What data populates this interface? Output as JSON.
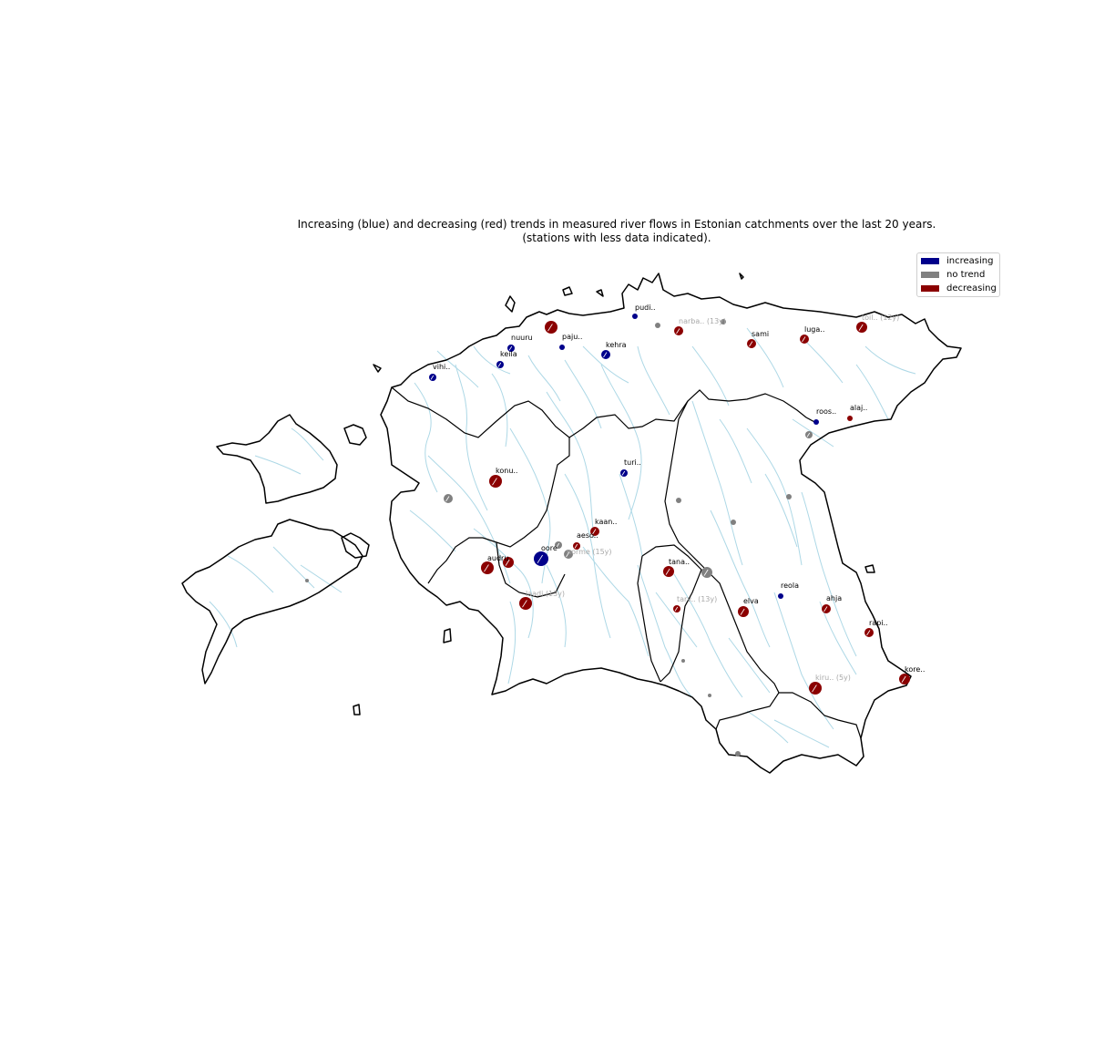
{
  "title": {
    "line1": "Increasing (blue) and decreasing (red) trends in measured river flows in Estonian catchments over the last 20 years.",
    "line2": "(stations with less data indicated)."
  },
  "legend": [
    {
      "label": "increasing",
      "color": "#00008b"
    },
    {
      "label": "no trend",
      "color": "#808080"
    },
    {
      "label": "decreasing",
      "color": "#8b0000"
    }
  ],
  "colors": {
    "increasing": "#00008b",
    "no_trend": "#808080",
    "decreasing": "#8b0000",
    "river": "#add8e6",
    "label_limited": "#a9a9a9"
  },
  "stations": [
    {
      "label": "",
      "trend": "decreasing"
    },
    {
      "label": "toil.. (12y)",
      "trend": "decreasing"
    },
    {
      "label": "narba.. (13y)",
      "trend": "decreasing"
    },
    {
      "label": "pudi..",
      "trend": "increasing"
    },
    {
      "label": "",
      "trend": "no_trend"
    },
    {
      "label": "",
      "trend": "no_trend"
    },
    {
      "label": "sami",
      "trend": "decreasing"
    },
    {
      "label": "luga..",
      "trend": "decreasing"
    },
    {
      "label": "nuuru",
      "trend": "increasing"
    },
    {
      "label": "paju..",
      "trend": "increasing"
    },
    {
      "label": "kehra",
      "trend": "increasing"
    },
    {
      "label": "keila",
      "trend": "increasing"
    },
    {
      "label": "vihi..",
      "trend": "increasing"
    },
    {
      "label": "roos..",
      "trend": "increasing"
    },
    {
      "label": "alaj..",
      "trend": "decreasing"
    },
    {
      "label": "",
      "trend": "no_trend"
    },
    {
      "label": "konu..",
      "trend": "decreasing"
    },
    {
      "label": "",
      "trend": "no_trend"
    },
    {
      "label": "turi..",
      "trend": "increasing"
    },
    {
      "label": "",
      "trend": "no_trend"
    },
    {
      "label": "",
      "trend": "no_trend"
    },
    {
      "label": "",
      "trend": "no_trend"
    },
    {
      "label": "kaan..",
      "trend": "decreasing"
    },
    {
      "label": "aeso..",
      "trend": "decreasing"
    },
    {
      "label": "oore",
      "trend": "increasing"
    },
    {
      "label": "",
      "trend": "no_trend"
    },
    {
      "label": "norme (15y)",
      "trend": "no_trend"
    },
    {
      "label": "audru",
      "trend": "decreasing"
    },
    {
      "label": "",
      "trend": "decreasing"
    },
    {
      "label": "laadi (13y)",
      "trend": "decreasing"
    },
    {
      "label": "tana..",
      "trend": "decreasing"
    },
    {
      "label": "",
      "trend": "no_trend"
    },
    {
      "label": "tarv.. (13y)",
      "trend": "decreasing"
    },
    {
      "label": "elva",
      "trend": "decreasing"
    },
    {
      "label": "reola",
      "trend": "increasing"
    },
    {
      "label": "ahja",
      "trend": "decreasing"
    },
    {
      "label": "rapi..",
      "trend": "decreasing"
    },
    {
      "label": "kore..",
      "trend": "decreasing"
    },
    {
      "label": "kiru.. (5y)",
      "trend": "decreasing"
    },
    {
      "label": "",
      "trend": "no_trend"
    },
    {
      "label": "",
      "trend": "no_trend"
    },
    {
      "label": "",
      "trend": "no_trend"
    },
    {
      "label": "",
      "trend": "no_trend"
    }
  ]
}
